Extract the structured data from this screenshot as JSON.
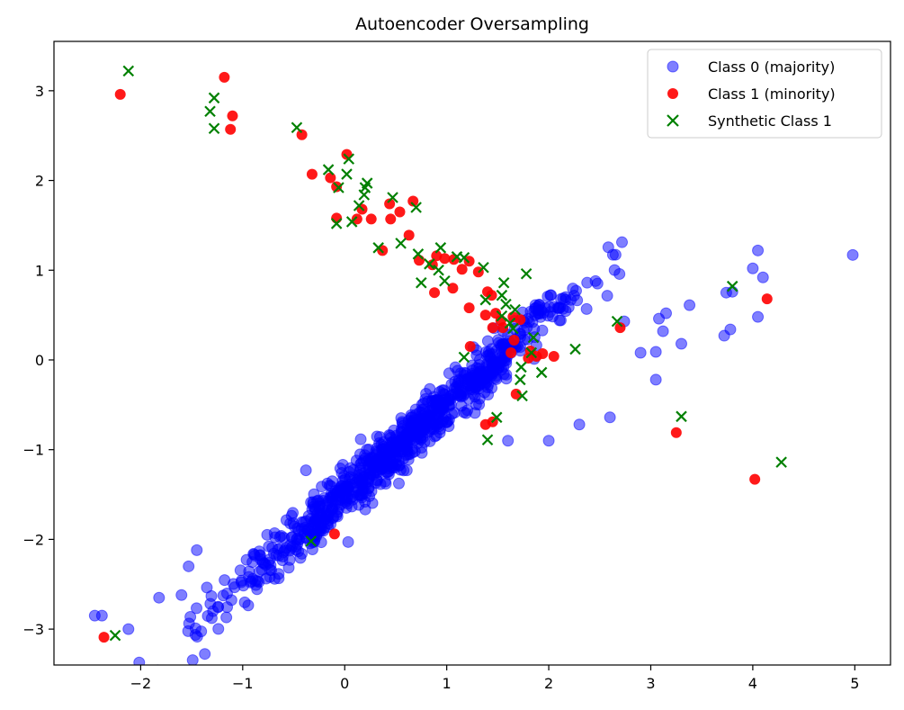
{
  "chart_data": {
    "type": "scatter",
    "title": "Autoencoder Oversampling",
    "xlabel": "",
    "ylabel": "",
    "xlim": [
      -2.85,
      5.35
    ],
    "ylim": [
      -3.4,
      3.55
    ],
    "xticks": [
      -2,
      -1,
      0,
      1,
      2,
      3,
      4,
      5
    ],
    "yticks": [
      -3,
      -2,
      -1,
      0,
      1,
      2,
      3
    ],
    "grid": false,
    "legend_position": "top-right",
    "series": [
      {
        "name": "Class 0 (majority)",
        "marker": "circle",
        "color": "#0000ff",
        "alpha": 0.5,
        "note": "approx. 900 points; explicit extremes listed, dense band generated along trend y = 1.0x - 1.5",
        "points": [
          [
            -2.45,
            -2.85
          ],
          [
            -2.38,
            -2.85
          ],
          [
            -2.12,
            -3.0
          ],
          [
            -1.82,
            -2.65
          ],
          [
            -1.6,
            -2.62
          ],
          [
            -1.53,
            -2.3
          ],
          [
            -1.45,
            -2.12
          ],
          [
            4.98,
            1.17
          ],
          [
            4.05,
            1.22
          ],
          [
            4.0,
            1.02
          ],
          [
            4.1,
            0.92
          ],
          [
            4.05,
            0.48
          ],
          [
            3.8,
            0.76
          ],
          [
            3.74,
            0.75
          ],
          [
            3.78,
            0.34
          ],
          [
            3.72,
            0.27
          ],
          [
            3.38,
            0.61
          ],
          [
            3.3,
            0.18
          ],
          [
            3.12,
            0.32
          ],
          [
            3.05,
            0.09
          ],
          [
            3.08,
            0.46
          ],
          [
            2.74,
            0.43
          ],
          [
            2.6,
            -0.64
          ],
          [
            3.05,
            -0.22
          ],
          [
            2.9,
            0.08
          ],
          [
            3.15,
            0.52
          ],
          [
            2.3,
            -0.72
          ],
          [
            2.0,
            -0.9
          ],
          [
            1.6,
            -0.9
          ],
          [
            -0.38,
            -1.23
          ]
        ]
      },
      {
        "name": "Class 1 (minority)",
        "marker": "circle",
        "color": "#ff0000",
        "alpha": 0.9,
        "points": [
          [
            -2.2,
            2.96
          ],
          [
            -1.18,
            3.15
          ],
          [
            -1.1,
            2.72
          ],
          [
            -1.12,
            2.57
          ],
          [
            -0.42,
            2.51
          ],
          [
            -0.32,
            2.07
          ],
          [
            -0.14,
            2.03
          ],
          [
            -0.08,
            1.93
          ],
          [
            0.02,
            2.29
          ],
          [
            -0.08,
            1.58
          ],
          [
            0.12,
            1.57
          ],
          [
            0.17,
            1.68
          ],
          [
            0.26,
            1.57
          ],
          [
            0.44,
            1.74
          ],
          [
            0.45,
            1.57
          ],
          [
            0.54,
            1.65
          ],
          [
            0.67,
            1.77
          ],
          [
            0.63,
            1.39
          ],
          [
            0.37,
            1.22
          ],
          [
            0.73,
            1.11
          ],
          [
            0.86,
            1.06
          ],
          [
            0.9,
            1.16
          ],
          [
            0.88,
            0.75
          ],
          [
            0.98,
            1.13
          ],
          [
            1.07,
            1.12
          ],
          [
            1.06,
            0.8
          ],
          [
            1.15,
            1.01
          ],
          [
            1.22,
            1.1
          ],
          [
            1.31,
            0.98
          ],
          [
            1.22,
            0.58
          ],
          [
            1.4,
            0.76
          ],
          [
            1.44,
            0.72
          ],
          [
            1.38,
            0.5
          ],
          [
            1.48,
            0.52
          ],
          [
            1.53,
            0.44
          ],
          [
            1.45,
            0.36
          ],
          [
            1.55,
            0.36
          ],
          [
            1.65,
            0.48
          ],
          [
            1.72,
            0.45
          ],
          [
            1.66,
            0.22
          ],
          [
            1.63,
            0.08
          ],
          [
            1.82,
            0.1
          ],
          [
            1.8,
            0.02
          ],
          [
            1.88,
            0.04
          ],
          [
            1.94,
            0.07
          ],
          [
            2.05,
            0.04
          ],
          [
            1.23,
            0.15
          ],
          [
            1.68,
            -0.38
          ],
          [
            1.45,
            -0.69
          ],
          [
            1.38,
            -0.72
          ],
          [
            2.7,
            0.36
          ],
          [
            3.25,
            -0.81
          ],
          [
            4.14,
            0.68
          ],
          [
            4.02,
            -1.33
          ],
          [
            -0.1,
            -1.94
          ],
          [
            -2.36,
            -3.09
          ]
        ]
      },
      {
        "name": "Synthetic Class 1",
        "marker": "x",
        "color": "#008000",
        "alpha": 1,
        "points": [
          [
            -2.12,
            3.22
          ],
          [
            -1.28,
            2.92
          ],
          [
            -1.32,
            2.77
          ],
          [
            -1.28,
            2.58
          ],
          [
            -0.47,
            2.59
          ],
          [
            -0.16,
            2.12
          ],
          [
            -0.06,
            1.92
          ],
          [
            0.04,
            2.24
          ],
          [
            0.02,
            2.07
          ],
          [
            -0.08,
            1.52
          ],
          [
            0.07,
            1.54
          ],
          [
            0.14,
            1.72
          ],
          [
            0.19,
            1.84
          ],
          [
            0.2,
            1.92
          ],
          [
            0.22,
            1.97
          ],
          [
            0.33,
            1.25
          ],
          [
            0.47,
            1.81
          ],
          [
            0.55,
            1.3
          ],
          [
            0.7,
            1.7
          ],
          [
            0.72,
            1.18
          ],
          [
            0.75,
            0.86
          ],
          [
            0.83,
            1.07
          ],
          [
            0.92,
            1.0
          ],
          [
            0.94,
            1.25
          ],
          [
            0.98,
            0.88
          ],
          [
            1.1,
            1.15
          ],
          [
            1.17,
            1.14
          ],
          [
            1.36,
            1.03
          ],
          [
            1.38,
            0.67
          ],
          [
            1.56,
            0.86
          ],
          [
            1.54,
            0.72
          ],
          [
            1.78,
            0.96
          ],
          [
            1.58,
            0.62
          ],
          [
            1.67,
            0.56
          ],
          [
            1.54,
            0.49
          ],
          [
            1.62,
            0.41
          ],
          [
            1.65,
            0.35
          ],
          [
            1.85,
            0.25
          ],
          [
            1.83,
            0.08
          ],
          [
            2.26,
            0.12
          ],
          [
            1.17,
            0.03
          ],
          [
            1.73,
            -0.08
          ],
          [
            1.93,
            -0.14
          ],
          [
            1.72,
            -0.22
          ],
          [
            1.74,
            -0.4
          ],
          [
            1.49,
            -0.64
          ],
          [
            1.4,
            -0.89
          ],
          [
            2.67,
            0.43
          ],
          [
            3.8,
            0.82
          ],
          [
            3.3,
            -0.63
          ],
          [
            4.28,
            -1.14
          ],
          [
            -0.33,
            -2.02
          ],
          [
            -2.25,
            -3.07
          ]
        ]
      }
    ]
  },
  "legend": {
    "entries": [
      "Class 0 (majority)",
      "Class 1 (minority)",
      "Synthetic Class 1"
    ]
  }
}
